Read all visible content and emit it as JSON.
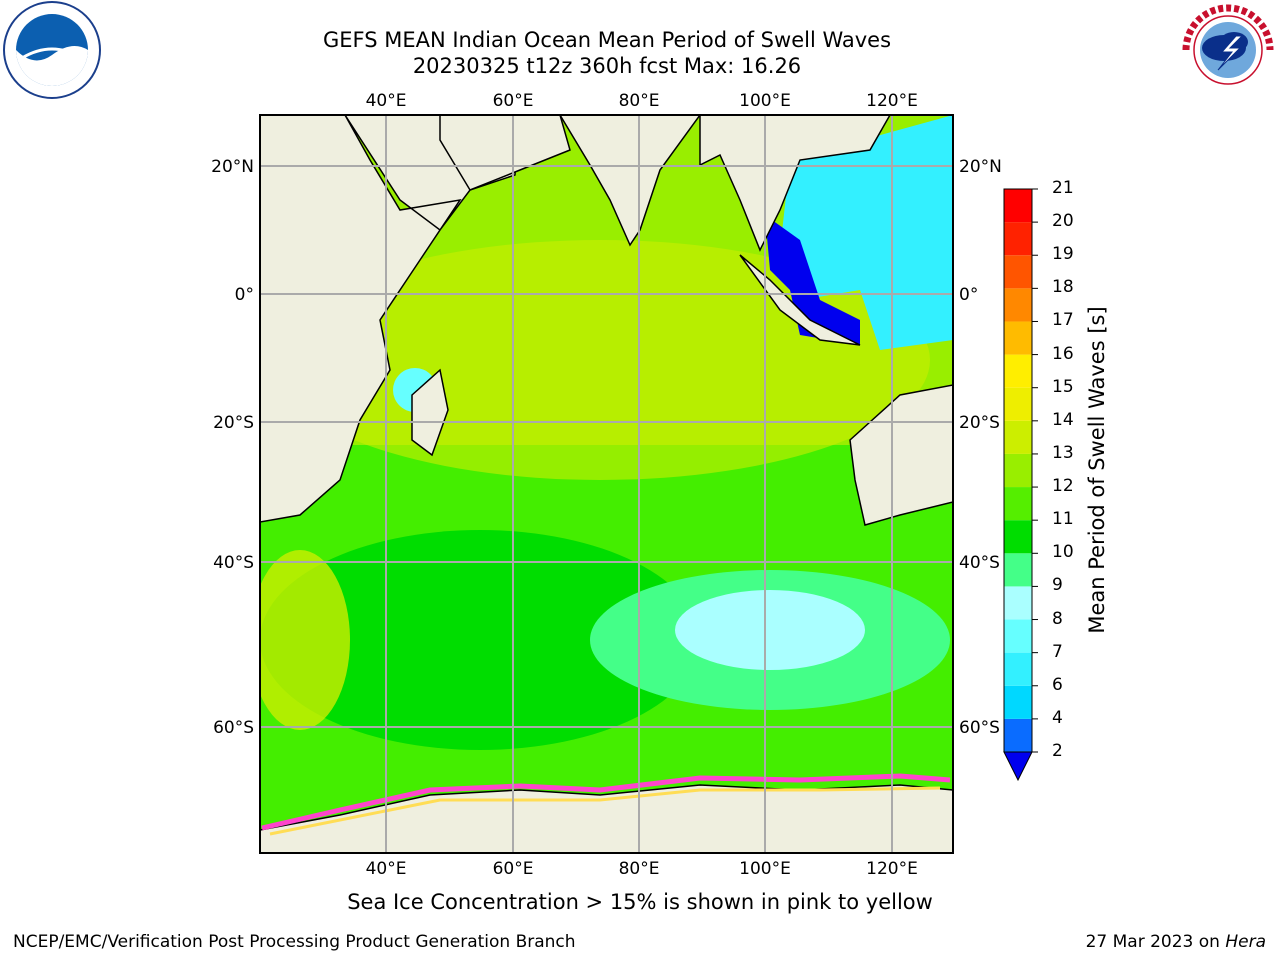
{
  "title_line1": "GEFS MEAN Indian Ocean Mean Period of Swell Waves",
  "title_line2": "20230325 t12z 360h fcst   Max: 16.26",
  "colorbar": {
    "title": "Mean Period of Swell Waves [s]",
    "levels": [
      "2",
      "4",
      "6",
      "7",
      "8",
      "9",
      "10",
      "11",
      "12",
      "13",
      "14",
      "15",
      "16",
      "17",
      "18",
      "19",
      "20",
      "21"
    ],
    "colors": [
      "#0000ee",
      "#0a6cff",
      "#00d8ff",
      "#33f0ff",
      "#66ffff",
      "#aaffff",
      "#44ff88",
      "#00dd00",
      "#55ee00",
      "#99ee00",
      "#ccee00",
      "#eeee00",
      "#ffee00",
      "#ffbb00",
      "#ff8800",
      "#ff5500",
      "#ff2200",
      "#ff0000"
    ]
  },
  "map": {
    "lon_labels": [
      "40°E",
      "60°E",
      "80°E",
      "100°E",
      "120°E"
    ],
    "lat_labels": [
      "20°N",
      "0°",
      "20°S",
      "40°S",
      "60°S"
    ],
    "land_color": "#efefdf"
  },
  "ice_note": "Sea Ice Concentration > 15% is shown in pink to yellow",
  "footer": {
    "left": "NCEP/EMC/Verification Post Processing Product Generation Branch",
    "date": "27 Mar 2023 on",
    "host": "Hera"
  },
  "logos": {
    "left": "noaa-logo",
    "right": "nws-logo"
  }
}
